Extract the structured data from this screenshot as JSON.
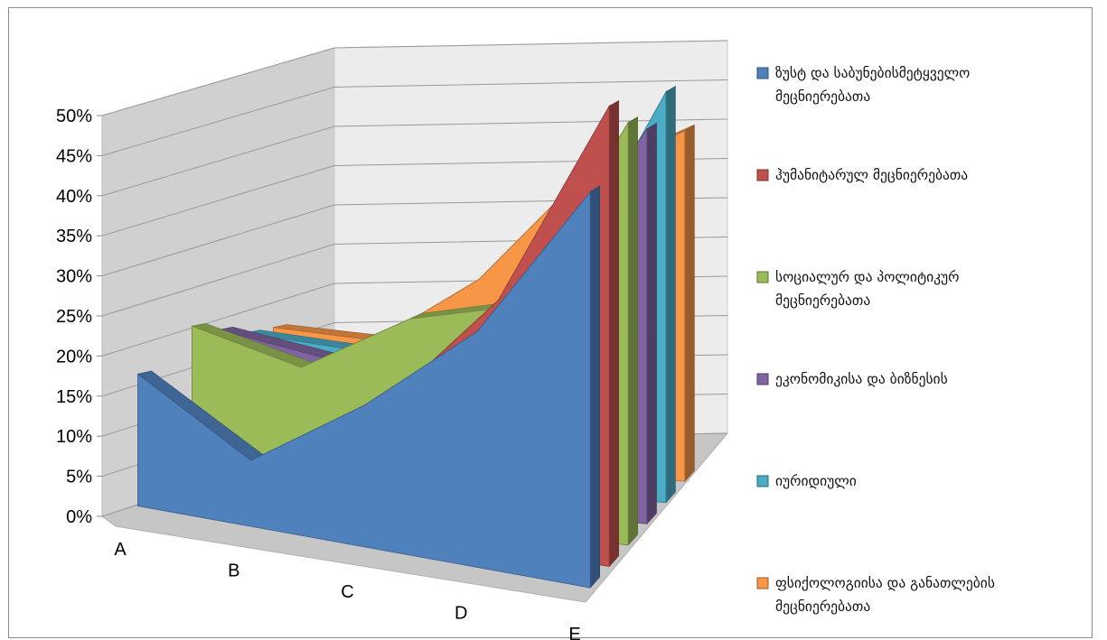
{
  "chart_data": {
    "type": "area",
    "variant": "3d",
    "title": "",
    "xlabel": "",
    "ylabel": "",
    "categories": [
      "A",
      "B",
      "C",
      "D",
      "E"
    ],
    "y_ticks": [
      "0%",
      "5%",
      "10%",
      "15%",
      "20%",
      "25%",
      "30%",
      "35%",
      "40%",
      "45%",
      "50%"
    ],
    "ylim": [
      0,
      50
    ],
    "y_unit": "%",
    "grid": true,
    "legend_position": "right",
    "series": [
      {
        "name": "ზუსტ და საბუნებისმეტყველო მეცნიერებათა",
        "legend_lines": [
          "ზუსტ და საბუნებისმეტყველო",
          "მეცნიერებათა"
        ],
        "color": "#4f81bd",
        "values": [
          14,
          7,
          15,
          25,
          42
        ]
      },
      {
        "name": "ჰუმანიტარულ მეცნიერებათა",
        "legend_lines": [
          "ჰუმანიტარულ მეცნიერებათა"
        ],
        "color": "#c0504d",
        "values": [
          2,
          5,
          14,
          27,
          50
        ]
      },
      {
        "name": "სოციალურ და პოლიტიკურ მეცნიერებათა",
        "legend_lines": [
          "სოციალურ და პოლიტიკურ",
          "მეცნიერებათა"
        ],
        "color": "#9bbb59",
        "values": [
          18,
          15,
          22,
          25,
          47
        ]
      },
      {
        "name": "ეკონომიკისა და ბიზნესის",
        "legend_lines": [
          "ეკონომიკისა და ბიზნესის"
        ],
        "color": "#8064a2",
        "values": [
          17,
          15,
          19,
          26,
          45
        ]
      },
      {
        "name": "იურიდიული",
        "legend_lines": [
          "იურიდიული"
        ],
        "color": "#4bacc6",
        "values": [
          16,
          15,
          17,
          25,
          48
        ]
      },
      {
        "name": "ფსიქოლოგიისა და განათლების მეცნიერებათა",
        "legend_lines": [
          "ფსიქოლოგიისა და განათლების",
          "მეცნიერებათა"
        ],
        "color": "#f79646",
        "values": [
          16,
          15,
          23,
          36,
          42
        ]
      }
    ]
  }
}
